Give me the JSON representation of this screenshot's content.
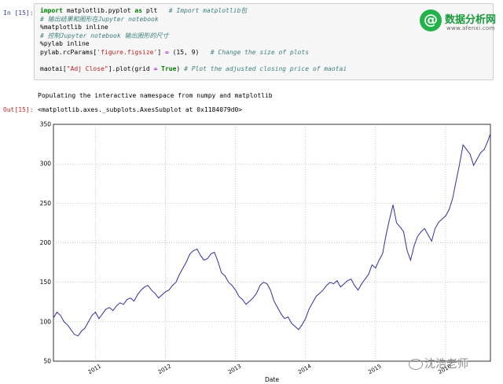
{
  "notebook": {
    "in_prompt": "In [15]:",
    "out_prompt": "Out[15]:",
    "code_lines": [
      [
        {
          "t": "kw",
          "v": "import"
        },
        {
          "t": "",
          "v": " matplotlib.pyplot "
        },
        {
          "t": "kw",
          "v": "as"
        },
        {
          "t": "",
          "v": " plt   "
        },
        {
          "t": "cm",
          "v": "# Import matplotlib包"
        }
      ],
      [
        {
          "t": "cm",
          "v": "# 输出结果和图形在Jupyter notebook"
        }
      ],
      [
        {
          "t": "",
          "v": "%matplotlib inline"
        }
      ],
      [
        {
          "t": "cm",
          "v": "# 控制Jupyter notebook 输出图形的尺寸"
        }
      ],
      [
        {
          "t": "",
          "v": "%pylab inline"
        }
      ],
      [
        {
          "t": "",
          "v": "pylab.rcParams["
        },
        {
          "t": "str",
          "v": "'figure.figsize'"
        },
        {
          "t": "",
          "v": "] "
        },
        {
          "t": "op",
          "v": "="
        },
        {
          "t": "",
          "v": " (15, 9)   "
        },
        {
          "t": "cm",
          "v": "# Change the size of plots"
        }
      ],
      [
        {
          "t": "",
          "v": ""
        }
      ],
      [
        {
          "t": "",
          "v": "maotai["
        },
        {
          "t": "str",
          "v": "\"Adj Close\""
        },
        {
          "t": "",
          "v": "].plot(grid "
        },
        {
          "t": "op",
          "v": "="
        },
        {
          "t": "",
          "v": " "
        },
        {
          "t": "kw",
          "v": "True"
        },
        {
          "t": "",
          "v": ") "
        },
        {
          "t": "cm",
          "v": "# Plot the adjusted closing price of maotai"
        }
      ]
    ],
    "stdout": "Populating the interactive namespace from numpy and matplotlib",
    "out_repr": "<matplotlib.axes._subplots.AxesSubplot at 0x1184079d0>"
  },
  "watermark": {
    "logo_glyph": "@",
    "title": "数据分析网",
    "url": "www.afenxi.com",
    "bottom_text": "沈浩老师"
  },
  "chart_data": {
    "type": "line",
    "xlabel": "Date",
    "ylabel": "",
    "title": "",
    "ylim": [
      50,
      350
    ],
    "xlim": [
      2010.4,
      2016.64
    ],
    "grid": true,
    "line_color": "#3030a0",
    "x_ticks": [
      "2011",
      "2012",
      "2013",
      "2014",
      "2015",
      "2016"
    ],
    "x_tick_values": [
      2011,
      2012,
      2013,
      2014,
      2015,
      2016
    ],
    "y_ticks": [
      "50",
      "100",
      "150",
      "200",
      "250",
      "300",
      "350"
    ],
    "y_tick_values": [
      50,
      100,
      150,
      200,
      250,
      300,
      350
    ],
    "series": [
      {
        "values_x": [
          2010.4,
          2010.45,
          2010.5,
          2010.55,
          2010.6,
          2010.65,
          2010.7,
          2010.75,
          2010.8,
          2010.85,
          2010.9,
          2010.95,
          2011.0,
          2011.05,
          2011.1,
          2011.15,
          2011.2,
          2011.25,
          2011.3,
          2011.35,
          2011.4,
          2011.45,
          2011.5,
          2011.55,
          2011.6,
          2011.65,
          2011.7,
          2011.75,
          2011.8,
          2011.85,
          2011.9,
          2011.95,
          2012.0,
          2012.05,
          2012.1,
          2012.15,
          2012.2,
          2012.25,
          2012.3,
          2012.35,
          2012.4,
          2012.45,
          2012.5,
          2012.55,
          2012.6,
          2012.65,
          2012.7,
          2012.75,
          2012.8,
          2012.85,
          2012.9,
          2012.95,
          2013.0,
          2013.05,
          2013.1,
          2013.15,
          2013.2,
          2013.25,
          2013.3,
          2013.35,
          2013.4,
          2013.45,
          2013.5,
          2013.55,
          2013.6,
          2013.65,
          2013.7,
          2013.75,
          2013.8,
          2013.85,
          2013.9,
          2013.95,
          2014.0,
          2014.05,
          2014.1,
          2014.15,
          2014.2,
          2014.25,
          2014.3,
          2014.35,
          2014.4,
          2014.45,
          2014.5,
          2014.55,
          2014.6,
          2014.65,
          2014.7,
          2014.75,
          2014.8,
          2014.85,
          2014.9,
          2014.95,
          2015.0,
          2015.05,
          2015.1,
          2015.15,
          2015.2,
          2015.25,
          2015.3,
          2015.35,
          2015.4,
          2015.45,
          2015.5,
          2015.55,
          2015.6,
          2015.65,
          2015.7,
          2015.75,
          2015.8,
          2015.85,
          2015.9,
          2015.95,
          2016.0,
          2016.05,
          2016.1,
          2016.15,
          2016.2,
          2016.25,
          2016.3,
          2016.35,
          2016.4,
          2016.45,
          2016.5,
          2016.55,
          2016.6,
          2016.64
        ],
        "values_y": [
          105,
          112,
          108,
          100,
          96,
          90,
          84,
          82,
          88,
          92,
          100,
          108,
          112,
          104,
          110,
          116,
          118,
          114,
          120,
          124,
          122,
          128,
          130,
          126,
          134,
          140,
          144,
          146,
          140,
          136,
          130,
          134,
          138,
          140,
          146,
          150,
          160,
          168,
          176,
          186,
          190,
          192,
          184,
          178,
          180,
          186,
          188,
          176,
          162,
          158,
          150,
          146,
          140,
          132,
          128,
          122,
          126,
          130,
          136,
          146,
          150,
          148,
          140,
          126,
          118,
          110,
          104,
          106,
          98,
          94,
          90,
          96,
          104,
          116,
          124,
          132,
          136,
          140,
          146,
          150,
          148,
          152,
          144,
          148,
          152,
          154,
          146,
          140,
          148,
          154,
          160,
          172,
          168,
          178,
          186,
          210,
          230,
          248,
          225,
          220,
          214,
          190,
          178,
          196,
          208,
          214,
          218,
          210,
          202,
          218,
          226,
          230,
          234,
          242,
          256,
          278,
          300,
          324,
          318,
          312,
          298,
          306,
          314,
          318,
          328,
          338
        ]
      }
    ]
  }
}
